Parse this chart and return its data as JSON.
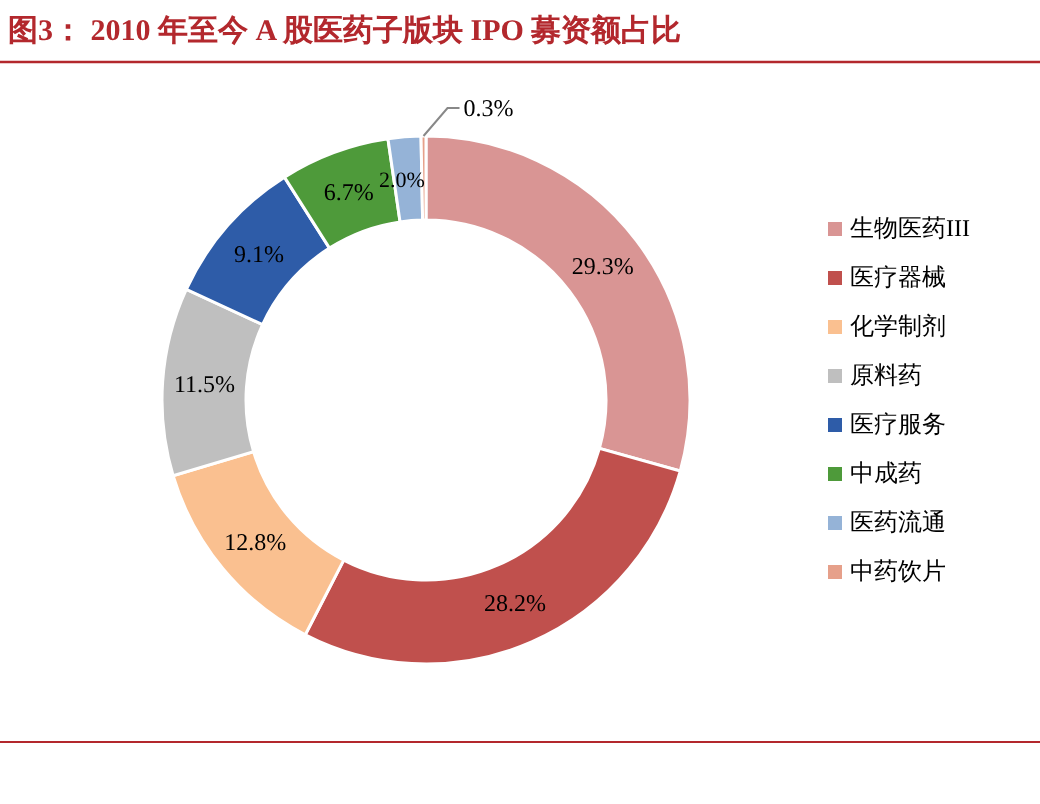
{
  "chart_data": {
    "type": "donut",
    "title": "图3：  2010 年至今 A 股医药子版块 IPO 募资额占比",
    "categories": [
      "生物医药III",
      "医疗器械",
      "化学制剂",
      "原料药",
      "医疗服务",
      "中成药",
      "医药流通",
      "中药饮片"
    ],
    "values": [
      29.3,
      28.2,
      12.8,
      11.5,
      9.1,
      6.7,
      2.0,
      0.3
    ],
    "colors": [
      "#d99594",
      "#c0504d",
      "#fac090",
      "#bfbfbf",
      "#2e5ca8",
      "#4e9a3a",
      "#95b3d7",
      "#e6a08a"
    ],
    "value_labels": [
      "29.3%",
      "28.2%",
      "12.8%",
      "11.5%",
      "9.1%",
      "6.7%",
      "2.0%",
      "0.3%"
    ],
    "legend": "right"
  }
}
